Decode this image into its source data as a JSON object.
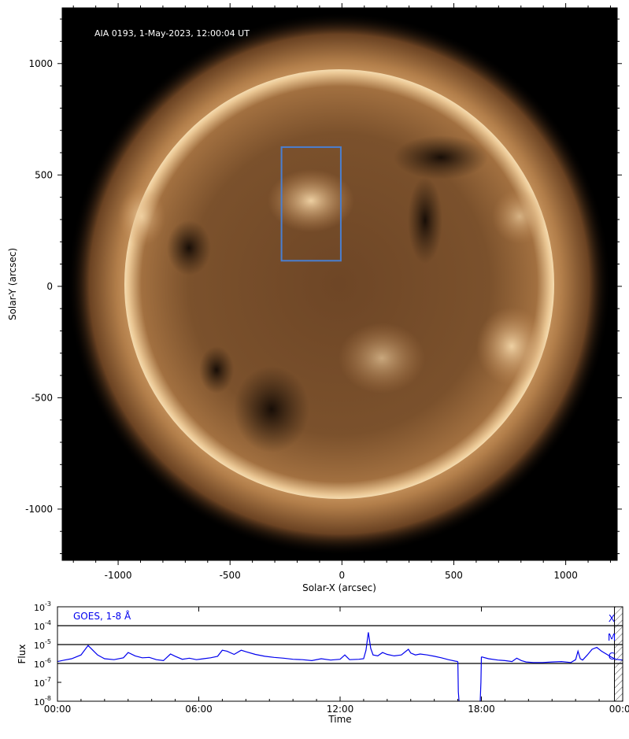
{
  "chart_data": [
    {
      "type": "image",
      "annotation": "AIA 0193, 1-May-2023, 12:00:04 UT",
      "xlabel": "Solar-X (arcsec)",
      "ylabel": "Solar-Y (arcsec)",
      "xlim": [
        -1250,
        1230
      ],
      "ylim": [
        -1230,
        1250
      ],
      "xticks": [
        -1000,
        -500,
        0,
        500,
        1000
      ],
      "xtick_labels": [
        "-1000",
        "-500",
        "0",
        "500",
        "1000"
      ],
      "yticks": [
        -1000,
        -500,
        0,
        500,
        1000
      ],
      "ytick_labels": [
        "-1000",
        "-500",
        "0",
        "500",
        "1000"
      ],
      "solar_radius": 950,
      "region_box": {
        "x0": -270,
        "x1": -5,
        "y0": 115,
        "y1": 625,
        "color": "#4a7fd0"
      },
      "colors": {
        "background": "#000000",
        "corona": "#b5804a",
        "disk": "#6b4323",
        "limb": "#f1d7ae"
      }
    },
    {
      "type": "line",
      "annotation": "GOES, 1-8 Å",
      "xlabel": "Time",
      "ylabel": "Flux",
      "x_unit": "hours",
      "xlim": [
        0,
        24
      ],
      "xticks": [
        0,
        6,
        12,
        18,
        24
      ],
      "xtick_labels": [
        "00:00",
        "06:00",
        "12:00",
        "18:00",
        "00:00"
      ],
      "ylim_log10": [
        -8,
        -3
      ],
      "yticks_log10": [
        -8,
        -7,
        -6,
        -5,
        -4,
        -3
      ],
      "ytick_labels": [
        {
          "base": "10",
          "exp": "-8"
        },
        {
          "base": "10",
          "exp": "-7"
        },
        {
          "base": "10",
          "exp": "-6"
        },
        {
          "base": "10",
          "exp": "-5"
        },
        {
          "base": "10",
          "exp": "-4"
        },
        {
          "base": "10",
          "exp": "-3"
        }
      ],
      "class_lines_log10": [
        -6,
        -5,
        -4
      ],
      "class_labels": [
        {
          "label": "X",
          "log10": -3.62
        },
        {
          "label": "M",
          "log10": -4.62
        },
        {
          "label": "C",
          "log10": -5.62
        }
      ],
      "hatched_range": [
        23.65,
        24
      ],
      "series_color": "#0000ee",
      "series": [
        {
          "x": [
            0,
            0.3,
            0.6,
            1.0,
            1.3,
            1.5,
            1.7,
            2.0,
            2.4,
            2.8,
            3.0,
            3.3,
            3.6,
            3.9,
            4.2,
            4.5,
            4.8,
            5.0,
            5.3,
            5.6,
            5.9,
            6.2,
            6.5,
            6.8,
            7.0,
            7.2,
            7.5,
            7.8,
            8.0,
            8.4,
            8.8,
            9.2,
            9.6,
            10.0,
            10.4,
            10.8,
            11.2,
            11.6,
            12.0,
            12.2,
            12.4,
            12.8,
            13.0,
            13.1,
            13.2,
            13.3,
            13.4,
            13.6,
            13.8,
            14.0,
            14.3,
            14.6,
            14.8,
            14.9,
            15.0,
            15.2,
            15.4,
            15.7,
            16.0,
            16.3,
            16.6,
            16.9,
            17.0
          ],
          "y_log10": [
            -5.9,
            -5.82,
            -5.75,
            -5.55,
            -5.05,
            -5.3,
            -5.55,
            -5.75,
            -5.8,
            -5.7,
            -5.42,
            -5.6,
            -5.7,
            -5.68,
            -5.8,
            -5.85,
            -5.5,
            -5.62,
            -5.78,
            -5.72,
            -5.8,
            -5.75,
            -5.7,
            -5.62,
            -5.3,
            -5.35,
            -5.52,
            -5.3,
            -5.38,
            -5.52,
            -5.62,
            -5.68,
            -5.72,
            -5.78,
            -5.8,
            -5.85,
            -5.75,
            -5.82,
            -5.78,
            -5.55,
            -5.8,
            -5.78,
            -5.75,
            -5.3,
            -4.35,
            -5.2,
            -5.55,
            -5.6,
            -5.42,
            -5.52,
            -5.6,
            -5.55,
            -5.35,
            -5.25,
            -5.45,
            -5.55,
            -5.5,
            -5.55,
            -5.62,
            -5.7,
            -5.8,
            -5.88,
            -5.9
          ]
        },
        {
          "x": [
            17.0,
            17.02,
            17.05
          ],
          "y_log10": [
            -5.9,
            -7.5,
            -8.0
          ]
        },
        {
          "x": [
            17.95,
            17.98,
            18.0
          ],
          "y_log10": [
            -8.0,
            -7.0,
            -5.65
          ]
        },
        {
          "x": [
            18.0,
            18.3,
            18.7,
            19.0,
            19.3,
            19.5,
            19.7,
            19.9,
            20.2,
            20.6,
            21.0,
            21.4,
            21.8,
            22.0,
            22.1,
            22.2,
            22.3,
            22.5,
            22.7,
            22.9,
            23.1,
            23.3,
            23.5,
            23.7,
            24.0
          ],
          "y_log10": [
            -5.65,
            -5.75,
            -5.82,
            -5.85,
            -5.9,
            -5.72,
            -5.85,
            -5.92,
            -5.95,
            -5.95,
            -5.92,
            -5.9,
            -5.95,
            -5.8,
            -5.35,
            -5.75,
            -5.82,
            -5.55,
            -5.25,
            -5.15,
            -5.35,
            -5.5,
            -5.65,
            -5.78,
            -5.82
          ]
        }
      ]
    }
  ]
}
